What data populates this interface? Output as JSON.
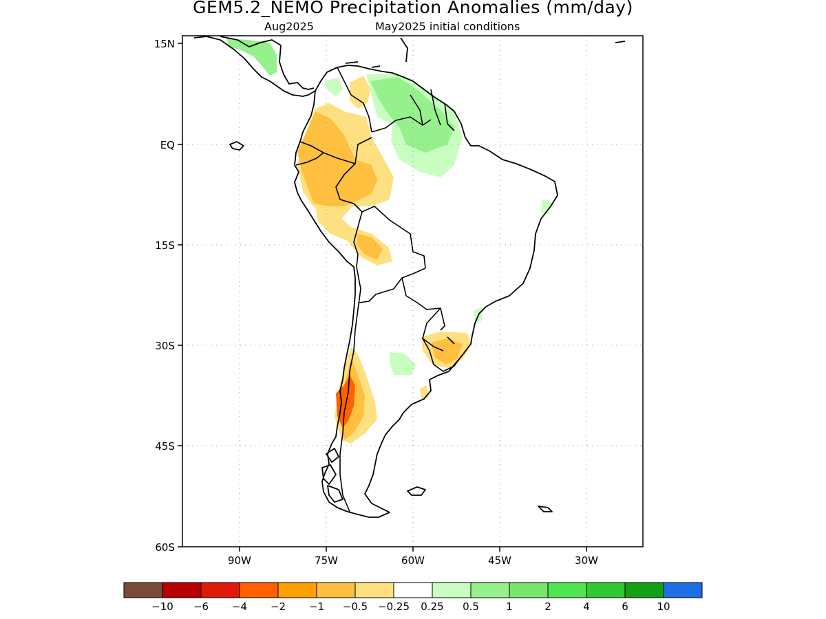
{
  "title": "GEM5.2_NEMO Precipitation Anomalies (mm/day)",
  "subtitle_left": "Aug2025",
  "subtitle_right": "May2025 initial conditions",
  "lat_labels": [
    "15N",
    "EQ",
    "15S",
    "30S",
    "45S",
    "60S"
  ],
  "lon_labels": [
    "90W",
    "75W",
    "60W",
    "45W",
    "30W"
  ],
  "colorbar": {
    "colors": [
      "#7a4a3a",
      "#b80000",
      "#e01a0a",
      "#ff6000",
      "#ffa000",
      "#ffc040",
      "#ffe080",
      "#ffffff",
      "#c8ffc0",
      "#96f08c",
      "#78e66e",
      "#50e650",
      "#32c832",
      "#14a014",
      "#1e6ee6"
    ],
    "labels": [
      "−10",
      "−6",
      "−4",
      "−2",
      "−1",
      "−0.5",
      "−0.25",
      "0.25",
      "0.5",
      "1",
      "2",
      "4",
      "6",
      "10"
    ]
  },
  "colors": {
    "coast": "#000000",
    "grid": "#999999",
    "land": "#ffffff"
  }
}
